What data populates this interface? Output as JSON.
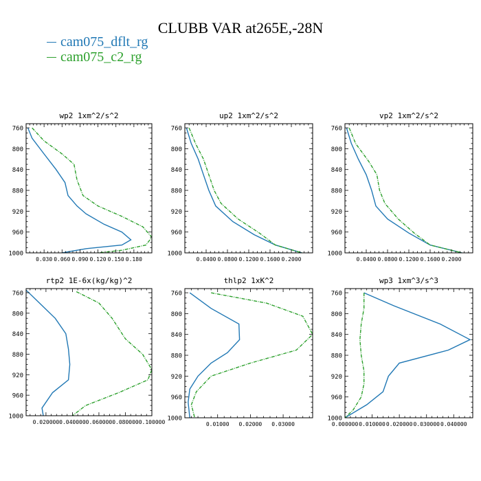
{
  "title": "CLUBB VAR at265E,-28N",
  "legend": [
    {
      "name": "cam075_dflt_rg",
      "color": "#1f77b4"
    },
    {
      "name": "cam075_c2_rg",
      "color": "#2ca02c"
    }
  ],
  "chart_data": [
    {
      "type": "line",
      "title": "wp2   1xm^2/s^2",
      "xlim": [
        0.0,
        0.21
      ],
      "xticks": [
        0.03,
        0.06,
        0.09,
        0.12,
        0.15,
        0.18
      ],
      "xtick_labels": [
        "0.030",
        "0.060",
        "0.090",
        "0.120",
        "0.150",
        "0.180"
      ],
      "ylim": [
        1000,
        752
      ],
      "yticks": [
        760,
        800,
        840,
        880,
        920,
        960,
        1000
      ],
      "ytick_labels": [
        "760",
        "800",
        "840",
        "880",
        "920",
        "960",
        "1000"
      ],
      "series": [
        {
          "name": "cam075_dflt_rg",
          "x": [
            0.003,
            0.01,
            0.03,
            0.05,
            0.065,
            0.07,
            0.085,
            0.1,
            0.13,
            0.16,
            0.175,
            0.16,
            0.1,
            0.06
          ],
          "y": [
            760,
            780,
            810,
            840,
            865,
            890,
            910,
            925,
            945,
            960,
            975,
            985,
            992,
            1000
          ]
        },
        {
          "name": "cam075_c2_rg",
          "x": [
            0.01,
            0.03,
            0.06,
            0.08,
            0.085,
            0.095,
            0.12,
            0.16,
            0.195,
            0.21,
            0.2,
            0.16,
            0.12
          ],
          "y": [
            760,
            785,
            810,
            830,
            860,
            890,
            910,
            930,
            950,
            970,
            985,
            995,
            1000
          ]
        }
      ]
    },
    {
      "type": "line",
      "title": "up2   1xm^2/s^2",
      "xlim": [
        0.0,
        0.24
      ],
      "xticks": [
        0.04,
        0.08,
        0.12,
        0.16,
        0.2
      ],
      "xtick_labels": [
        "0.0400",
        "0.0800",
        "0.1200",
        "0.1600",
        "0.2000"
      ],
      "ylim": [
        1000,
        752
      ],
      "yticks": [
        760,
        800,
        840,
        880,
        920,
        960,
        1000
      ],
      "ytick_labels": [
        "760",
        "800",
        "840",
        "880",
        "920",
        "960",
        "1000"
      ],
      "series": [
        {
          "name": "cam075_dflt_rg",
          "x": [
            0.003,
            0.012,
            0.025,
            0.035,
            0.045,
            0.058,
            0.09,
            0.13,
            0.17,
            0.22
          ],
          "y": [
            760,
            790,
            820,
            850,
            880,
            910,
            940,
            965,
            985,
            1000
          ]
        },
        {
          "name": "cam075_c2_rg",
          "x": [
            0.008,
            0.02,
            0.035,
            0.045,
            0.055,
            0.068,
            0.1,
            0.14,
            0.17,
            0.22
          ],
          "y": [
            760,
            790,
            820,
            850,
            880,
            905,
            935,
            962,
            985,
            1000
          ]
        }
      ]
    },
    {
      "type": "line",
      "title": "vp2   1xm^2/s^2",
      "xlim": [
        0.0,
        0.24
      ],
      "xticks": [
        0.04,
        0.08,
        0.12,
        0.16,
        0.2
      ],
      "xtick_labels": [
        "0.0400",
        "0.0800",
        "0.1200",
        "0.1600",
        "0.2000"
      ],
      "ylim": [
        1000,
        752
      ],
      "yticks": [
        760,
        800,
        840,
        880,
        920,
        960,
        1000
      ],
      "ytick_labels": [
        "760",
        "800",
        "840",
        "880",
        "920",
        "960",
        "1000"
      ],
      "series": [
        {
          "name": "cam075_dflt_rg",
          "x": [
            0.003,
            0.012,
            0.025,
            0.04,
            0.05,
            0.058,
            0.08,
            0.12,
            0.16,
            0.22
          ],
          "y": [
            760,
            790,
            820,
            850,
            880,
            910,
            935,
            962,
            985,
            1000
          ]
        },
        {
          "name": "cam075_c2_rg",
          "x": [
            0.008,
            0.02,
            0.045,
            0.06,
            0.065,
            0.075,
            0.1,
            0.13,
            0.16,
            0.22
          ],
          "y": [
            760,
            790,
            825,
            850,
            880,
            905,
            935,
            962,
            985,
            1000
          ]
        }
      ]
    },
    {
      "type": "line",
      "title": "rtp2   1E-6x(kg/kg)^2",
      "xlim": [
        0.005,
        0.1
      ],
      "xticks": [
        0.02,
        0.04,
        0.06,
        0.08,
        0.1
      ],
      "xtick_labels": [
        "0.020000",
        "0.040000",
        "0.060000",
        "0.080000",
        "0.100000"
      ],
      "ylim": [
        1000,
        752
      ],
      "yticks": [
        760,
        800,
        840,
        880,
        920,
        960,
        1000
      ],
      "ytick_labels": [
        "760",
        "800",
        "840",
        "880",
        "920",
        "960",
        "1000"
      ],
      "series": [
        {
          "name": "cam075_dflt_rg",
          "x": [
            0.005,
            0.015,
            0.027,
            0.035,
            0.037,
            0.038,
            0.037,
            0.025,
            0.017,
            0.018
          ],
          "y": [
            755,
            780,
            810,
            840,
            870,
            900,
            930,
            955,
            985,
            1000
          ]
        },
        {
          "name": "cam075_c2_rg",
          "x": [
            0.043,
            0.06,
            0.07,
            0.08,
            0.093,
            0.1,
            0.097,
            0.075,
            0.05,
            0.04
          ],
          "y": [
            758,
            780,
            810,
            850,
            880,
            910,
            930,
            955,
            980,
            1000
          ]
        }
      ]
    },
    {
      "type": "line",
      "title": "thlp2   1xK^2",
      "xlim": [
        0.0,
        0.039
      ],
      "xticks": [
        0.01,
        0.02,
        0.03
      ],
      "xtick_labels": [
        "0.01000",
        "0.02000",
        "0.03000"
      ],
      "ylim": [
        1000,
        752
      ],
      "yticks": [
        760,
        800,
        840,
        880,
        920,
        960,
        1000
      ],
      "ytick_labels": [
        "760",
        "800",
        "840",
        "880",
        "920",
        "960",
        "1000"
      ],
      "series": [
        {
          "name": "cam075_dflt_rg",
          "x": [
            0.0015,
            0.008,
            0.0165,
            0.0167,
            0.013,
            0.008,
            0.004,
            0.0015,
            0.001,
            0.0015
          ],
          "y": [
            760,
            790,
            820,
            850,
            875,
            895,
            920,
            945,
            970,
            1000
          ]
        },
        {
          "name": "cam075_c2_rg",
          "x": [
            0.008,
            0.025,
            0.036,
            0.039,
            0.034,
            0.02,
            0.008,
            0.0035,
            0.002,
            0.003
          ],
          "y": [
            760,
            780,
            805,
            840,
            870,
            895,
            920,
            950,
            975,
            1000
          ]
        }
      ]
    },
    {
      "type": "line",
      "title": "wp3   1xm^3/s^3",
      "xlim": [
        0.0,
        0.047
      ],
      "xticks": [
        0.0,
        0.01,
        0.02,
        0.03,
        0.04
      ],
      "xtick_labels": [
        "0.000000",
        "0.010000",
        "0.020000",
        "0.030000",
        "0.040000"
      ],
      "ylim": [
        1000,
        752
      ],
      "yticks": [
        760,
        800,
        840,
        880,
        920,
        960,
        1000
      ],
      "ytick_labels": [
        "760",
        "800",
        "840",
        "880",
        "920",
        "960",
        "1000"
      ],
      "series": [
        {
          "name": "cam075_dflt_rg",
          "x": [
            0.007,
            0.018,
            0.035,
            0.046,
            0.038,
            0.02,
            0.016,
            0.014,
            0.008,
            0.0
          ],
          "y": [
            760,
            785,
            820,
            850,
            870,
            895,
            920,
            950,
            975,
            1000
          ]
        },
        {
          "name": "cam075_c2_rg",
          "x": [
            0.007,
            0.007,
            0.006,
            0.0055,
            0.006,
            0.007,
            0.007,
            0.006,
            0.003,
            0.0
          ],
          "y": [
            760,
            790,
            820,
            850,
            880,
            910,
            935,
            960,
            985,
            1000
          ]
        }
      ]
    }
  ]
}
